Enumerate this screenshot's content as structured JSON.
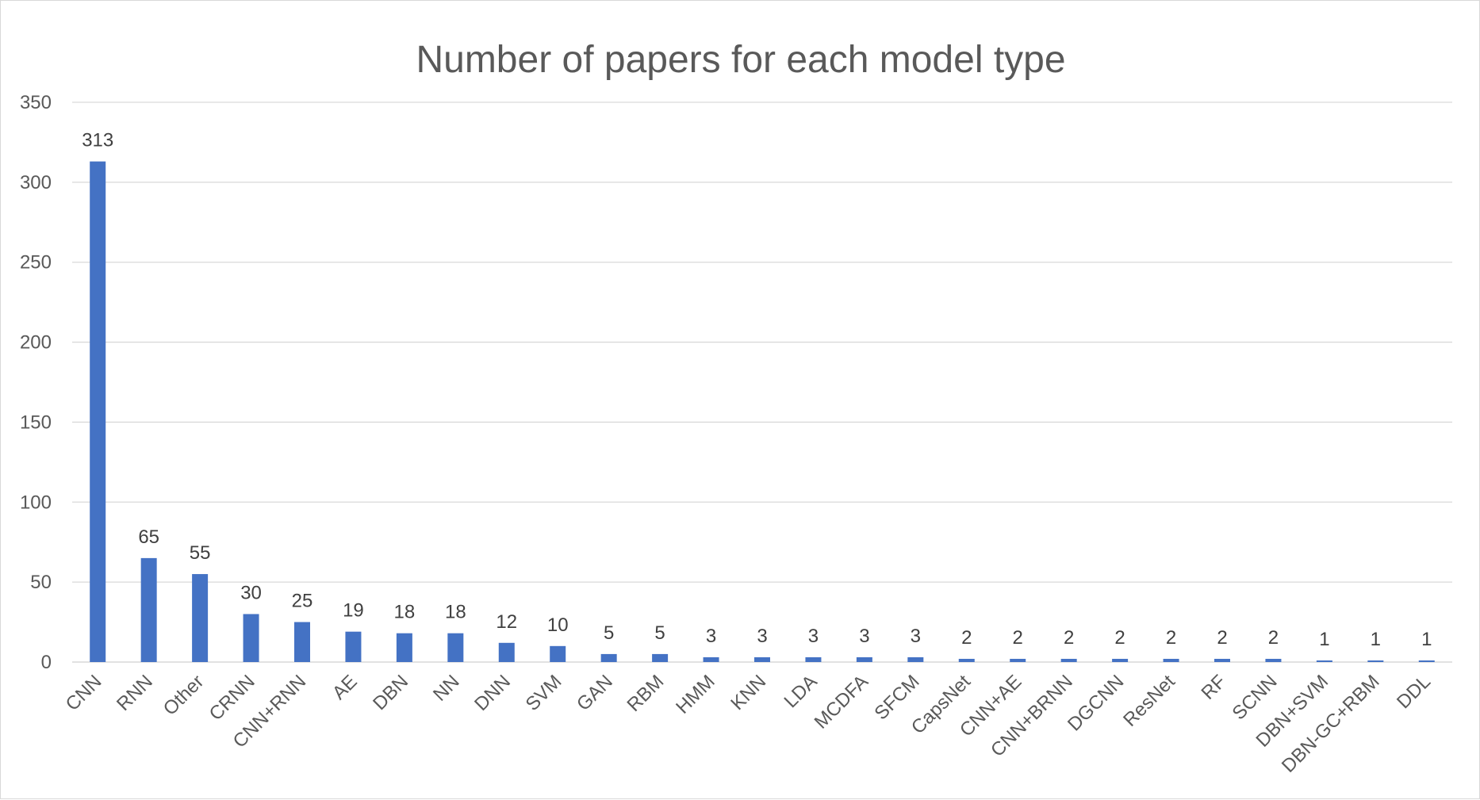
{
  "chart_data": {
    "type": "bar",
    "title": "Number of papers for each model type",
    "xlabel": "",
    "ylabel": "",
    "ylim": [
      0,
      350
    ],
    "yticks": [
      0,
      50,
      100,
      150,
      200,
      250,
      300,
      350
    ],
    "grid": true,
    "legend": "none",
    "categories": [
      "CNN",
      "RNN",
      "Other",
      "CRNN",
      "CNN+RNN",
      "AE",
      "DBN",
      "NN",
      "DNN",
      "SVM",
      "GAN",
      "RBM",
      "HMM",
      "KNN",
      "LDA",
      "MCDFA",
      "SFCM",
      "CapsNet",
      "CNN+AE",
      "CNN+BRNN",
      "DGCNN",
      "ResNet",
      "RF",
      "SCNN",
      "DBN+SVM",
      "DBN-GC+RBM",
      "DDL"
    ],
    "values": [
      313,
      65,
      55,
      30,
      25,
      19,
      18,
      18,
      12,
      10,
      5,
      5,
      3,
      3,
      3,
      3,
      3,
      2,
      2,
      2,
      2,
      2,
      2,
      2,
      1,
      1,
      1
    ],
    "bar_color": "#4472c4",
    "grid_color": "#d9d9d9",
    "text_color": "#595959"
  }
}
